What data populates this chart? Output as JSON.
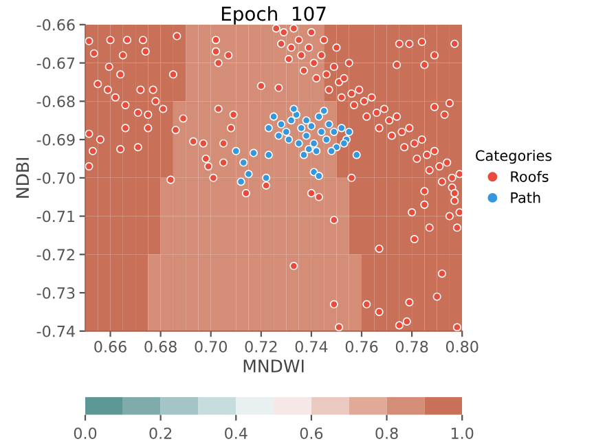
{
  "chart_data": [
    {
      "type": "heatmap",
      "categories": [
        null,
        null,
        null,
        null,
        null,
        null,
        null,
        null,
        null,
        null,
        null,
        null,
        null,
        null,
        null,
        null,
        null,
        null,
        null,
        null,
        null,
        null,
        null,
        null,
        null,
        null,
        null,
        null,
        null,
        null
      ],
      "y_categories": [
        null,
        null,
        null,
        null,
        null,
        null,
        null,
        null
      ],
      "tick_labels": false,
      "clim": [
        0,
        1
      ],
      "cticks": [
        {
          "value": 0,
          "label": "0.0"
        },
        {
          "value": 0.2,
          "label": "0.2"
        },
        {
          "value": 0.4,
          "label": "0.4"
        },
        {
          "value": 0.6,
          "label": "0.6"
        },
        {
          "value": 0.8,
          "label": "0.8"
        },
        {
          "value": 1,
          "label": "1.0"
        }
      ],
      "cells": [
        [
          0.95,
          0.95,
          0.95,
          0.95,
          0.95,
          0.95,
          0.95,
          0.95,
          0.85,
          0.85,
          0.85,
          0.85,
          0.85,
          0.85,
          0.85,
          0.85,
          0.85,
          0.85,
          0.85,
          0.95,
          0.95,
          0.95,
          0.95,
          0.95,
          0.95,
          0.95,
          0.95,
          0.95,
          0.95,
          0.95
        ],
        [
          0.95,
          0.95,
          0.95,
          0.95,
          0.95,
          0.95,
          0.95,
          0.95,
          0.85,
          0.85,
          0.85,
          0.85,
          0.85,
          0.85,
          0.85,
          0.85,
          0.85,
          0.85,
          0.85,
          0.95,
          0.95,
          0.95,
          0.95,
          0.95,
          0.95,
          0.95,
          0.95,
          0.95,
          0.95,
          0.95
        ],
        [
          0.95,
          0.95,
          0.95,
          0.95,
          0.95,
          0.95,
          0.95,
          0.85,
          0.85,
          0.85,
          0.85,
          0.85,
          0.85,
          0.85,
          0.85,
          0.85,
          0.85,
          0.85,
          0.85,
          0.85,
          0.95,
          0.95,
          0.95,
          0.95,
          0.95,
          0.95,
          0.95,
          0.95,
          0.95,
          0.95
        ],
        [
          0.95,
          0.95,
          0.95,
          0.95,
          0.95,
          0.95,
          0.95,
          0.85,
          0.85,
          0.85,
          0.85,
          0.85,
          0.85,
          0.85,
          0.85,
          0.85,
          0.85,
          0.85,
          0.85,
          0.85,
          0.95,
          0.95,
          0.95,
          0.95,
          0.95,
          0.95,
          0.95,
          0.95,
          0.95,
          0.95
        ],
        [
          0.95,
          0.95,
          0.95,
          0.95,
          0.95,
          0.95,
          0.85,
          0.85,
          0.85,
          0.85,
          0.85,
          0.85,
          0.85,
          0.85,
          0.85,
          0.85,
          0.85,
          0.85,
          0.85,
          0.85,
          0.85,
          0.95,
          0.95,
          0.95,
          0.95,
          0.95,
          0.95,
          0.95,
          0.95,
          0.95
        ],
        [
          0.95,
          0.95,
          0.95,
          0.95,
          0.95,
          0.95,
          0.85,
          0.85,
          0.85,
          0.85,
          0.85,
          0.85,
          0.85,
          0.85,
          0.85,
          0.85,
          0.85,
          0.85,
          0.85,
          0.85,
          0.85,
          0.95,
          0.95,
          0.95,
          0.95,
          0.95,
          0.95,
          0.95,
          0.95,
          0.95
        ],
        [
          0.95,
          0.95,
          0.95,
          0.95,
          0.95,
          0.85,
          0.85,
          0.85,
          0.85,
          0.85,
          0.85,
          0.85,
          0.85,
          0.85,
          0.85,
          0.85,
          0.85,
          0.85,
          0.85,
          0.85,
          0.85,
          0.85,
          0.95,
          0.95,
          0.95,
          0.95,
          0.95,
          0.95,
          0.95,
          0.95
        ],
        [
          0.95,
          0.95,
          0.95,
          0.95,
          0.95,
          0.85,
          0.85,
          0.85,
          0.85,
          0.85,
          0.85,
          0.85,
          0.85,
          0.85,
          0.85,
          0.85,
          0.85,
          0.85,
          0.85,
          0.85,
          0.85,
          0.85,
          0.95,
          0.95,
          0.95,
          0.95,
          0.95,
          0.95,
          0.95,
          0.95
        ]
      ]
    },
    {
      "type": "scatter",
      "title": "Epoch  107",
      "xlabel": "MNDWI",
      "ylabel": "NDBI",
      "legend_title": "Categories",
      "legend": "right",
      "xlim": [
        0.65,
        0.8
      ],
      "ylim": [
        -0.74,
        -0.66
      ],
      "xticks": [
        {
          "value": 0.66,
          "label": "0.66"
        },
        {
          "value": 0.68,
          "label": "0.68"
        },
        {
          "value": 0.7,
          "label": "0.70"
        },
        {
          "value": 0.72,
          "label": "0.72"
        },
        {
          "value": 0.74,
          "label": "0.74"
        },
        {
          "value": 0.76,
          "label": "0.76"
        },
        {
          "value": 0.78,
          "label": "0.78"
        },
        {
          "value": 0.8,
          "label": "0.80"
        }
      ],
      "yticks": [
        {
          "value": -0.66,
          "label": "-0.66"
        },
        {
          "value": -0.67,
          "label": "-0.67"
        },
        {
          "value": -0.68,
          "label": "-0.68"
        },
        {
          "value": -0.69,
          "label": "-0.69"
        },
        {
          "value": -0.7,
          "label": "-0.70"
        },
        {
          "value": -0.71,
          "label": "-0.71"
        },
        {
          "value": -0.72,
          "label": "-0.72"
        },
        {
          "value": -0.73,
          "label": "-0.73"
        },
        {
          "value": -0.74,
          "label": "-0.74"
        }
      ],
      "marker": "circle",
      "grid": false,
      "series": [
        {
          "name": "Roofs",
          "color": "#e74c3c",
          "x": [
            0.6515,
            0.66,
            0.6667,
            0.673,
            0.6865,
            0.6535,
            0.665,
            0.674,
            0.6595,
            0.664,
            0.655,
            0.659,
            0.672,
            0.677,
            0.685,
            0.662,
            0.666,
            0.671,
            0.675,
            0.681,
            0.678,
            0.666,
            0.675,
            0.656,
            0.6515,
            0.653,
            0.664,
            0.671,
            0.6515,
            0.686,
            0.689,
            0.684,
            0.703,
            0.709,
            0.708,
            0.697,
            0.705,
            0.698,
            0.705,
            0.693,
            0.699,
            0.701,
            0.714,
            0.74,
            0.702,
            0.707,
            0.703,
            0.702,
            0.727,
            0.72,
            0.743,
            0.749,
            0.733,
            0.749,
            0.751,
            0.762,
            0.756,
            0.722,
            0.767,
            0.78,
            0.781,
            0.785,
            0.787,
            0.792,
            0.79,
            0.779,
            0.767,
            0.775,
            0.778,
            0.785,
            0.796,
            0.797,
            0.798,
            0.775,
            0.784,
            0.779,
            0.789,
            0.797,
            0.774,
            0.785,
            0.795,
            0.789,
            0.793,
            0.726,
            0.729,
            0.733,
            0.728,
            0.732,
            0.735,
            0.731,
            0.736,
            0.739,
            0.737,
            0.741,
            0.744,
            0.742,
            0.746,
            0.749,
            0.747,
            0.751,
            0.753,
            0.752,
            0.756,
            0.759,
            0.757,
            0.761,
            0.764,
            0.762,
            0.766,
            0.769,
            0.767,
            0.771,
            0.774,
            0.772,
            0.776,
            0.779,
            0.777,
            0.781,
            0.784,
            0.782,
            0.786,
            0.789,
            0.787,
            0.791,
            0.794,
            0.792,
            0.796,
            0.799,
            0.797,
            0.799,
            0.798,
            0.795,
            0.74,
            0.745,
            0.75,
            0.755
          ],
          "values": [
            -0.6643,
            -0.664,
            -0.664,
            -0.664,
            -0.663,
            -0.6675,
            -0.668,
            -0.667,
            -0.671,
            -0.673,
            -0.6755,
            -0.677,
            -0.677,
            -0.677,
            -0.673,
            -0.679,
            -0.681,
            -0.683,
            -0.6835,
            -0.682,
            -0.68,
            -0.687,
            -0.687,
            -0.69,
            -0.6885,
            -0.693,
            -0.6925,
            -0.692,
            -0.697,
            -0.6875,
            -0.6845,
            -0.7005,
            -0.682,
            -0.6835,
            -0.687,
            -0.691,
            -0.691,
            -0.695,
            -0.696,
            -0.6905,
            -0.697,
            -0.7,
            -0.704,
            -0.704,
            -0.667,
            -0.668,
            -0.67,
            -0.664,
            -0.6765,
            -0.676,
            -0.705,
            -0.711,
            -0.723,
            -0.733,
            -0.739,
            -0.733,
            -0.7,
            -0.702,
            -0.7185,
            -0.709,
            -0.716,
            -0.707,
            -0.713,
            -0.725,
            -0.731,
            -0.7325,
            -0.735,
            -0.7385,
            -0.7375,
            -0.7035,
            -0.7025,
            -0.706,
            -0.739,
            -0.665,
            -0.6645,
            -0.665,
            -0.668,
            -0.665,
            -0.6705,
            -0.6705,
            -0.6805,
            -0.6815,
            -0.6835,
            -0.661,
            -0.662,
            -0.661,
            -0.665,
            -0.666,
            -0.664,
            -0.669,
            -0.668,
            -0.666,
            -0.672,
            -0.67,
            -0.668,
            -0.674,
            -0.673,
            -0.671,
            -0.677,
            -0.675,
            -0.674,
            -0.679,
            -0.678,
            -0.677,
            -0.681,
            -0.68,
            -0.679,
            -0.684,
            -0.683,
            -0.682,
            -0.687,
            -0.685,
            -0.684,
            -0.689,
            -0.688,
            -0.687,
            -0.692,
            -0.691,
            -0.69,
            -0.695,
            -0.694,
            -0.693,
            -0.698,
            -0.697,
            -0.696,
            -0.701,
            -0.7,
            -0.699,
            -0.704,
            -0.709,
            -0.713,
            -0.71,
            -0.662,
            -0.664,
            -0.666,
            -0.67
          ]
        },
        {
          "name": "Path",
          "color": "#3498db",
          "x": [
            0.725,
            0.728,
            0.73,
            0.727,
            0.732,
            0.734,
            0.736,
            0.738,
            0.738,
            0.74,
            0.741,
            0.743,
            0.744,
            0.746,
            0.747,
            0.749,
            0.75,
            0.752,
            0.754,
            0.755,
            0.742,
            0.739,
            0.735,
            0.731,
            0.723,
            0.733,
            0.745,
            0.748,
            0.737,
            0.753,
            0.713,
            0.717,
            0.723,
            0.712,
            0.715,
            0.722,
            0.741,
            0.743,
            0.758,
            0.71
          ],
          "values": [
            -0.684,
            -0.686,
            -0.688,
            -0.689,
            -0.685,
            -0.6835,
            -0.687,
            -0.685,
            -0.689,
            -0.6865,
            -0.691,
            -0.684,
            -0.688,
            -0.69,
            -0.686,
            -0.688,
            -0.692,
            -0.687,
            -0.69,
            -0.688,
            -0.693,
            -0.6925,
            -0.691,
            -0.69,
            -0.687,
            -0.682,
            -0.6825,
            -0.693,
            -0.694,
            -0.691,
            -0.696,
            -0.6935,
            -0.694,
            -0.701,
            -0.699,
            -0.7,
            -0.6985,
            -0.6995,
            -0.694,
            -0.693
          ]
        }
      ]
    }
  ]
}
